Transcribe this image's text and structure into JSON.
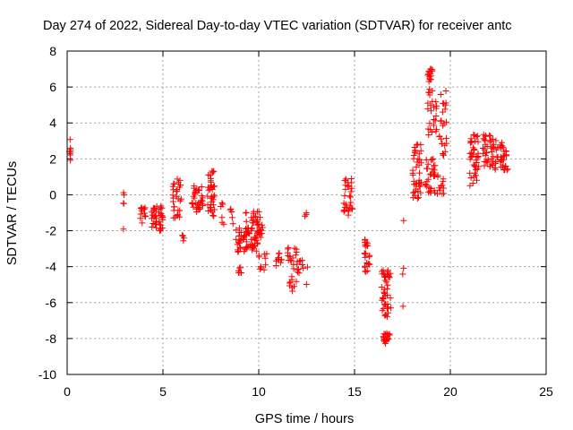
{
  "chart_data": {
    "type": "scatter",
    "title": "Day 274 of 2022, Sidereal Day-to-day VTEC variation (SDTVAR) for receiver antc",
    "xlabel": "GPS time / hours",
    "ylabel": "SDTVAR / TECUs",
    "xlim": [
      0,
      25
    ],
    "ylim": [
      -10,
      8
    ],
    "xticks": [
      0,
      5,
      10,
      15,
      20,
      25
    ],
    "yticks": [
      -10,
      -8,
      -6,
      -4,
      -2,
      0,
      2,
      4,
      6,
      8
    ],
    "xtick_labels": [
      "0",
      "5",
      "10",
      "15",
      "20",
      "25"
    ],
    "ytick_labels": [
      "-10",
      "-8",
      "-6",
      "-4",
      "-2",
      "0",
      "2",
      "4",
      "6",
      "8"
    ],
    "grid": true,
    "marker": "+",
    "color": "#ff0000",
    "clusters": [
      {
        "x0": 0.05,
        "x1": 0.2,
        "y0": 1.8,
        "y1": 3.2,
        "n": 8
      },
      {
        "x0": 2.9,
        "x1": 3.0,
        "y0": -0.6,
        "y1": 0.3,
        "n": 4
      },
      {
        "x0": 2.9,
        "x1": 2.95,
        "y0": -1.95,
        "y1": -1.85,
        "n": 1
      },
      {
        "x0": 3.8,
        "x1": 4.1,
        "y0": -1.7,
        "y1": -0.6,
        "n": 14
      },
      {
        "x0": 4.4,
        "x1": 5.0,
        "y0": -2.1,
        "y1": -0.6,
        "n": 40
      },
      {
        "x0": 5.5,
        "x1": 6.0,
        "y0": -1.4,
        "y1": 0.9,
        "n": 30
      },
      {
        "x0": 5.9,
        "x1": 6.1,
        "y0": -2.6,
        "y1": -2.2,
        "n": 4
      },
      {
        "x0": 6.5,
        "x1": 7.1,
        "y0": -1.0,
        "y1": 0.5,
        "n": 34
      },
      {
        "x0": 7.3,
        "x1": 7.7,
        "y0": -1.5,
        "y1": 1.5,
        "n": 38
      },
      {
        "x0": 8.0,
        "x1": 8.2,
        "y0": -1.7,
        "y1": -0.2,
        "n": 6
      },
      {
        "x0": 8.5,
        "x1": 8.7,
        "y0": -1.7,
        "y1": -0.7,
        "n": 5
      },
      {
        "x0": 8.8,
        "x1": 9.4,
        "y0": -3.2,
        "y1": -1.8,
        "n": 28
      },
      {
        "x0": 8.9,
        "x1": 9.1,
        "y0": -4.4,
        "y1": -3.9,
        "n": 6
      },
      {
        "x0": 9.3,
        "x1": 10.1,
        "y0": -3.0,
        "y1": -0.8,
        "n": 45
      },
      {
        "x0": 9.6,
        "x1": 10.2,
        "y0": -3.2,
        "y1": -1.0,
        "n": 20
      },
      {
        "x0": 10.0,
        "x1": 10.5,
        "y0": -4.3,
        "y1": -3.2,
        "n": 10
      },
      {
        "x0": 10.1,
        "x1": 10.3,
        "y0": -2.4,
        "y1": -1.6,
        "n": 4
      },
      {
        "x0": 10.9,
        "x1": 11.2,
        "y0": -4.1,
        "y1": -3.1,
        "n": 10
      },
      {
        "x0": 11.5,
        "x1": 12.0,
        "y0": -5.4,
        "y1": -2.8,
        "n": 25
      },
      {
        "x0": 12.0,
        "x1": 12.6,
        "y0": -4.4,
        "y1": -3.6,
        "n": 12
      },
      {
        "x0": 12.4,
        "x1": 12.5,
        "y0": -5.0,
        "y1": -4.8,
        "n": 1
      },
      {
        "x0": 12.4,
        "x1": 12.5,
        "y0": -1.2,
        "y1": -0.6,
        "n": 3
      },
      {
        "x0": 14.4,
        "x1": 14.9,
        "y0": -1.2,
        "y1": 0.9,
        "n": 30
      },
      {
        "x0": 15.5,
        "x1": 15.8,
        "y0": -4.6,
        "y1": -2.4,
        "n": 24
      },
      {
        "x0": 16.4,
        "x1": 16.9,
        "y0": -6.8,
        "y1": -4.1,
        "n": 45
      },
      {
        "x0": 16.5,
        "x1": 16.85,
        "y0": -8.3,
        "y1": -7.7,
        "n": 20
      },
      {
        "x0": 17.5,
        "x1": 17.6,
        "y0": -4.5,
        "y1": -3.8,
        "n": 2
      },
      {
        "x0": 17.5,
        "x1": 17.6,
        "y0": -6.3,
        "y1": -6.2,
        "n": 1
      },
      {
        "x0": 17.5,
        "x1": 17.6,
        "y0": -1.5,
        "y1": -1.4,
        "n": 1
      },
      {
        "x0": 18.0,
        "x1": 18.5,
        "y0": -0.3,
        "y1": 2.9,
        "n": 40
      },
      {
        "x0": 18.7,
        "x1": 19.2,
        "y0": 0.0,
        "y1": 2.0,
        "n": 30
      },
      {
        "x0": 18.8,
        "x1": 19.1,
        "y0": 6.3,
        "y1": 7.0,
        "n": 15
      },
      {
        "x0": 18.8,
        "x1": 19.3,
        "y0": 3.2,
        "y1": 5.9,
        "n": 25
      },
      {
        "x0": 19.3,
        "x1": 19.7,
        "y0": 0.0,
        "y1": 1.2,
        "n": 12
      },
      {
        "x0": 19.4,
        "x1": 19.8,
        "y0": 2.1,
        "y1": 5.8,
        "n": 25
      },
      {
        "x0": 21.0,
        "x1": 21.5,
        "y0": 0.2,
        "y1": 3.4,
        "n": 40
      },
      {
        "x0": 21.7,
        "x1": 22.1,
        "y0": 1.5,
        "y1": 3.4,
        "n": 25
      },
      {
        "x0": 22.1,
        "x1": 22.5,
        "y0": 1.4,
        "y1": 3.3,
        "n": 22
      },
      {
        "x0": 22.6,
        "x1": 23.0,
        "y0": 1.2,
        "y1": 3.0,
        "n": 30
      }
    ]
  }
}
